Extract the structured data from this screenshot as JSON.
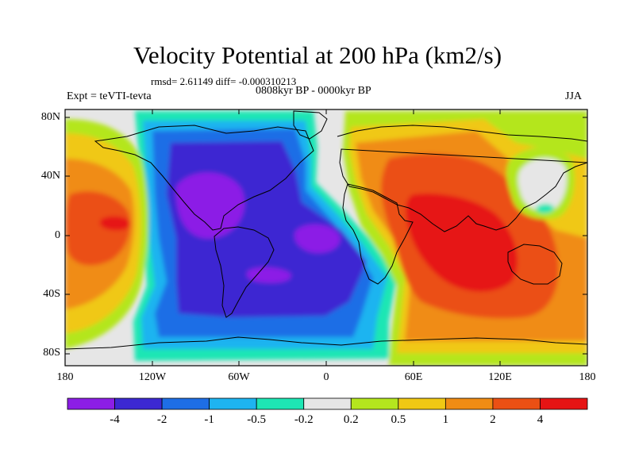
{
  "title": "Velocity Potential at 200 hPa (km2/s)",
  "stats": "rmsd= 2.61149 diff= -0.000310213",
  "period": "0808kyr BP - 0000kyr BP",
  "experiment": "Expt = teVTI-tevta",
  "season": "JJA",
  "lat_labels": [
    "80N",
    "40N",
    "0",
    "40S",
    "80S"
  ],
  "lon_labels": [
    "180",
    "120W",
    "60W",
    "0",
    "60E",
    "120E",
    "180"
  ],
  "colorbar": {
    "labels": [
      "-4",
      "-2",
      "-1",
      "-0.5",
      "-0.2",
      "0.2",
      "0.5",
      "1",
      "2",
      "4"
    ],
    "colors": [
      "#8c1ee6",
      "#3c28d2",
      "#1e6ee6",
      "#1eb4f0",
      "#1ee6b4",
      "#e6e6e6",
      "#b4e61e",
      "#f0c814",
      "#f08c14",
      "#eb5014",
      "#e61414"
    ]
  }
}
